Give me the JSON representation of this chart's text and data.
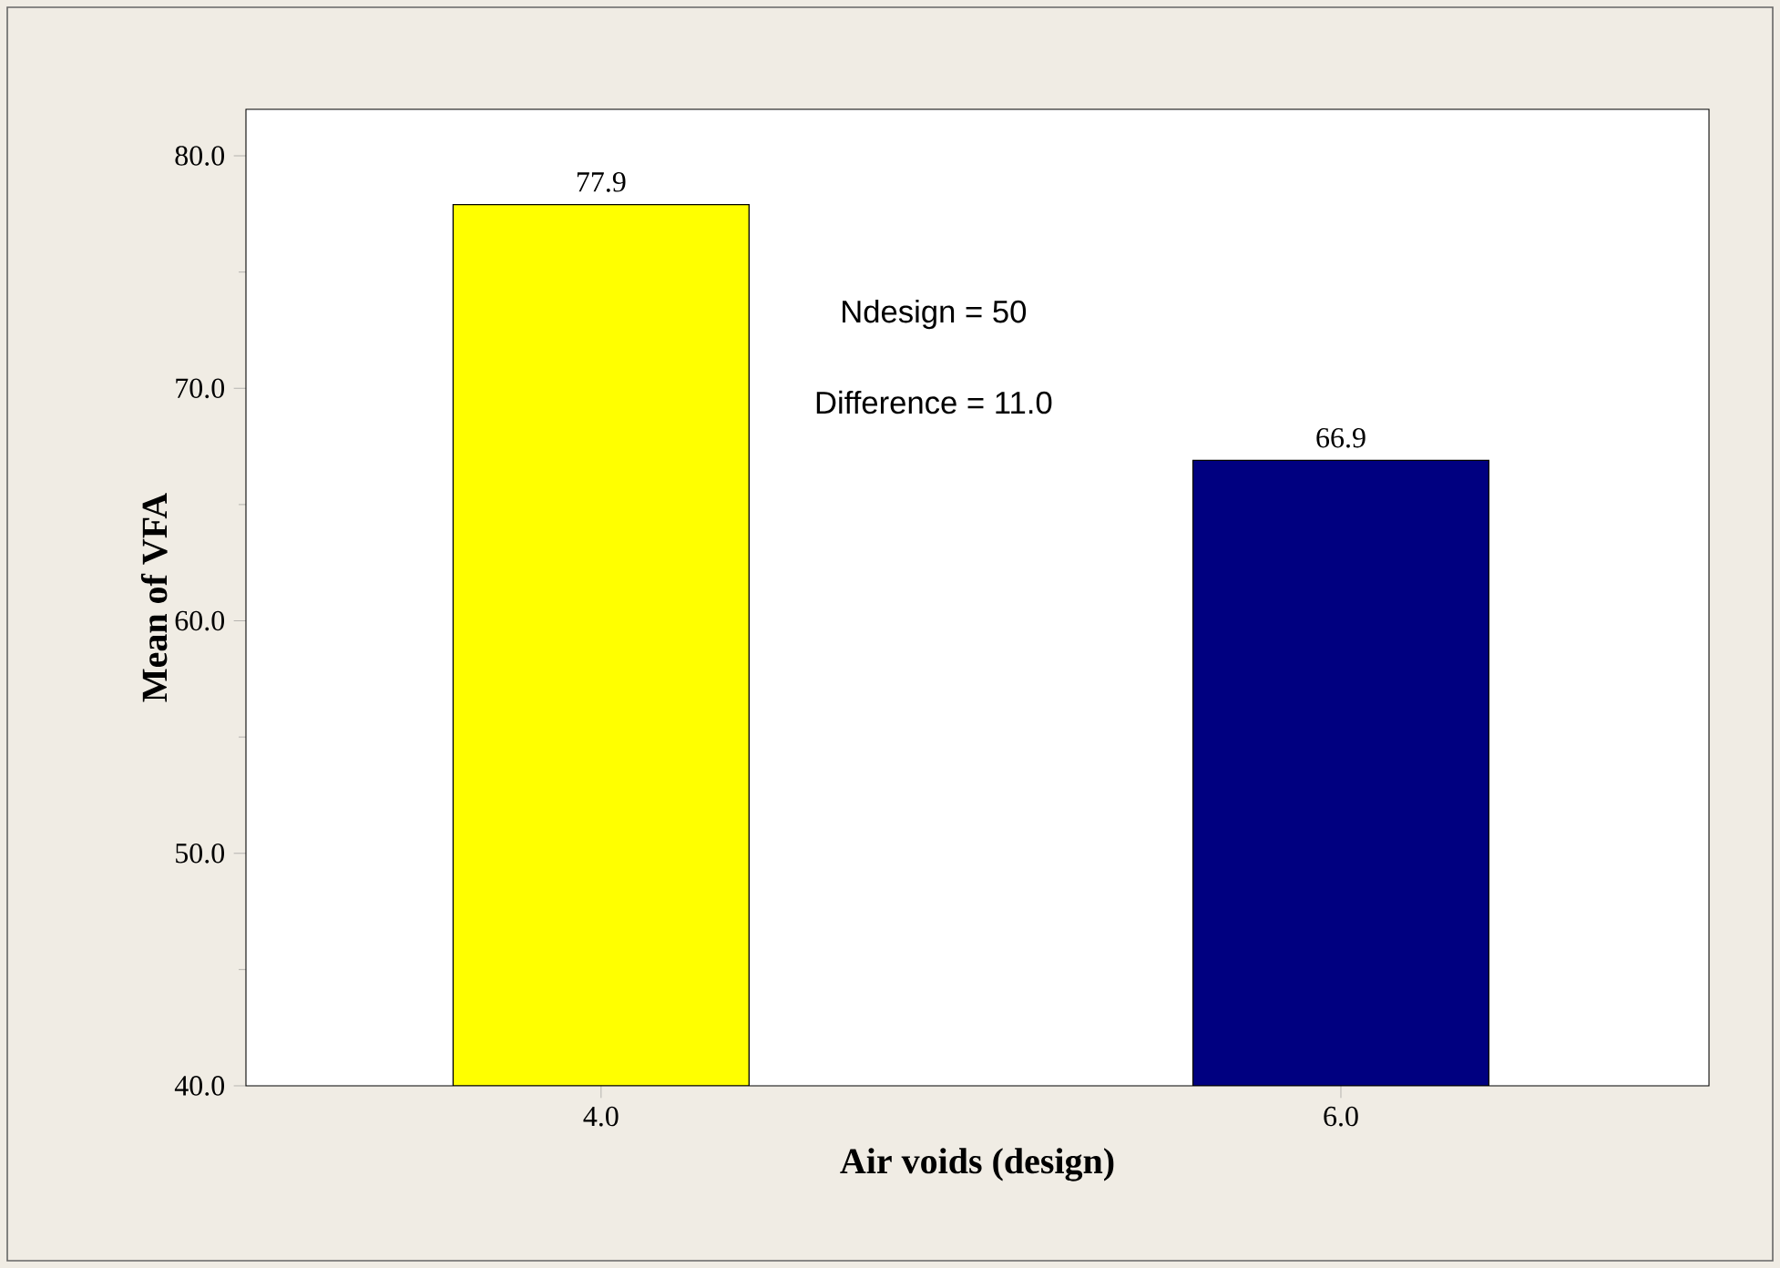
{
  "chart_data": {
    "type": "bar",
    "xlabel": "Air voids (design)",
    "ylabel": "Mean of VFA",
    "categories": [
      "4.0",
      "6.0"
    ],
    "values": [
      77.9,
      66.9
    ],
    "colors": [
      "#ffff00",
      "#000080"
    ],
    "value_labels": [
      "77.9",
      "66.9"
    ],
    "ylim": [
      40,
      82
    ],
    "yticks": [
      {
        "value": 40,
        "label": "40.0"
      },
      {
        "value": 45,
        "label": null
      },
      {
        "value": 50,
        "label": "50.0"
      },
      {
        "value": 55,
        "label": null
      },
      {
        "value": 60,
        "label": "60.0"
      },
      {
        "value": 65,
        "label": null
      },
      {
        "value": 70,
        "label": "70.0"
      },
      {
        "value": 75,
        "label": null
      },
      {
        "value": 80,
        "label": "80.0"
      }
    ],
    "annotations": [
      "Ndesign = 50",
      "Difference = 11.0"
    ],
    "grid": false
  }
}
